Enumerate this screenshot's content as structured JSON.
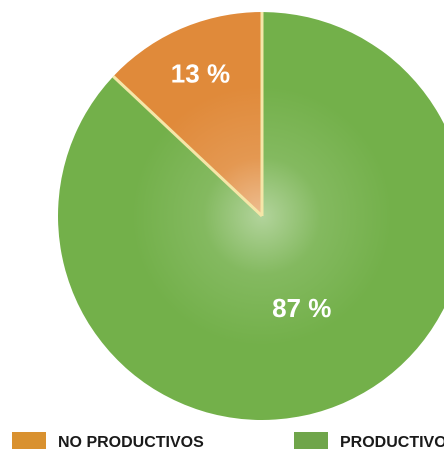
{
  "chart_data": {
    "type": "pie",
    "title": "",
    "slices": [
      {
        "label": "NO PRODUCTIVOS",
        "value": 13,
        "display": "13 %",
        "color": "#E08A3A"
      },
      {
        "label": "PRODUCTIVOS",
        "value": 87,
        "display": "87 %",
        "color": "#73B04A"
      }
    ],
    "start": "12 o'clock",
    "direction": "clockwise-from-largest",
    "legend": {
      "position": "bottom",
      "items": [
        {
          "label": "NO PRODUCTIVOS",
          "color": "#D9912F"
        },
        {
          "label": "PRODUCTIVOS",
          "color": "#6FA54A"
        }
      ]
    }
  },
  "colors": {
    "separator": "#F5E6A8",
    "label_text": "#FFFFFF",
    "legend_text": "#1A1A1A"
  }
}
